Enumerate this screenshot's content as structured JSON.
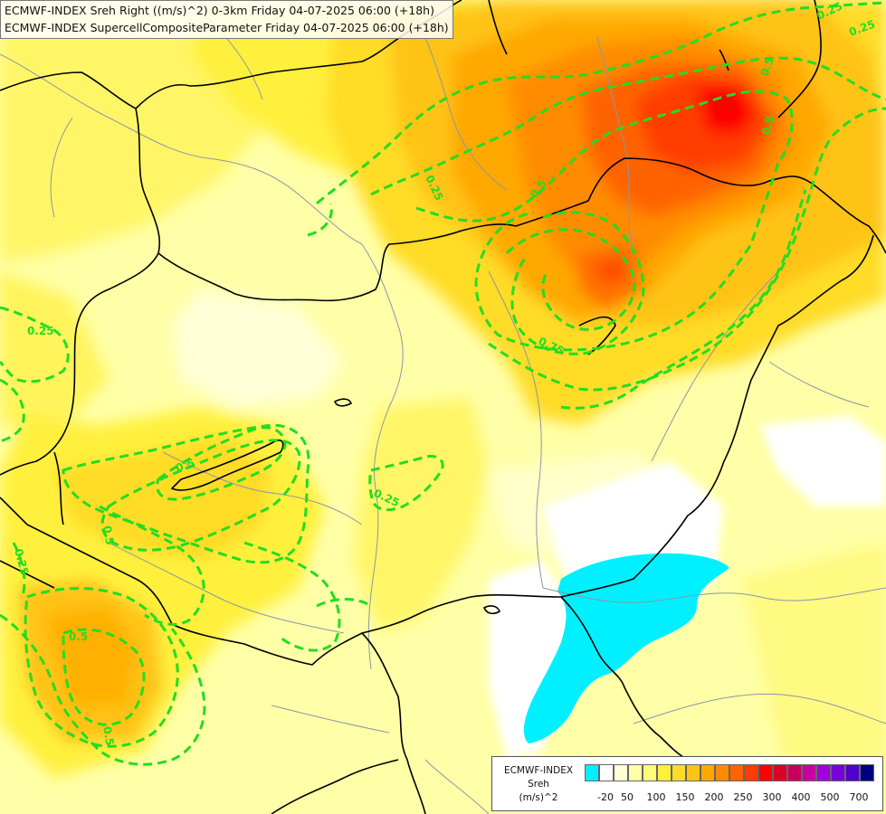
{
  "title_lines": [
    "ECMWF-INDEX Sreh Right ((m/s)^2) 0-3km Friday 04-07-2025 06:00 (+18h)",
    "ECMWF-INDEX SupercellCompositeParameter Friday 04-07-2025 06:00 (+18h)"
  ],
  "legend": {
    "title_lines": [
      "ECMWF-INDEX",
      "Sreh",
      "(m/s)^2"
    ],
    "colors": [
      "#00f0ff",
      "#ffffff",
      "#ffffd8",
      "#ffffa8",
      "#fffa78",
      "#fff03c",
      "#ffdc28",
      "#ffc314",
      "#ffa800",
      "#ff8c00",
      "#ff6400",
      "#ff3c00",
      "#ff0000",
      "#dc0028",
      "#c8005a",
      "#c800a0",
      "#a000dc",
      "#7800dc",
      "#5000c8",
      "#000080"
    ],
    "tick_labels": [
      "-20",
      "50",
      "100",
      "150",
      "200",
      "250",
      "300",
      "400",
      "500",
      "700"
    ]
  },
  "contour_labels": [
    "0.25",
    "0.25",
    "0.5",
    "0.5",
    "0.75",
    "0.25",
    "0.5",
    "0.25",
    "0.5",
    "0.25",
    "0.5",
    "0.5",
    "0.5",
    "0.25"
  ],
  "colors": {
    "contour": "#22dd22",
    "border": "#000000",
    "river": "#8a97a8"
  }
}
